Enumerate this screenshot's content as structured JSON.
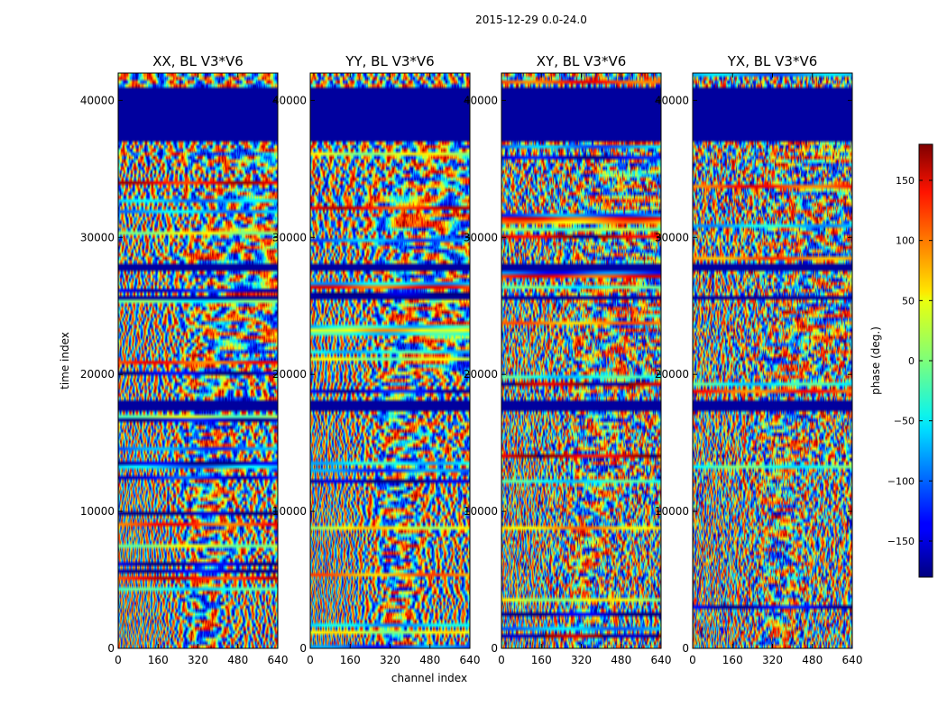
{
  "suptitle": "2015-12-29 0.0-24.0",
  "chart_data": {
    "type": "heatmap",
    "colormap": "jet",
    "xlabel": "channel index",
    "ylabel": "time index",
    "xlim": [
      0,
      640
    ],
    "ylim": [
      0,
      42000
    ],
    "xticks": [
      "0",
      "160",
      "320",
      "480",
      "640"
    ],
    "yticks": [
      "0",
      "10000",
      "20000",
      "30000",
      "40000"
    ],
    "panels": [
      {
        "title": "XX, BL V3*V6"
      },
      {
        "title": "YY, BL V3*V6"
      },
      {
        "title": "XY, BL V3*V6"
      },
      {
        "title": "YX, BL V3*V6"
      }
    ],
    "colorbar": {
      "label": "phase (deg.)",
      "range": [
        -180,
        180
      ],
      "ticks": [
        "150",
        "100",
        "50",
        "0",
        "−50",
        "−100",
        "−150"
      ]
    },
    "flagged_time_ranges": [
      [
        37000,
        41000
      ],
      [
        25400,
        25800
      ],
      [
        17200,
        18000
      ],
      [
        27600,
        28000
      ]
    ]
  }
}
